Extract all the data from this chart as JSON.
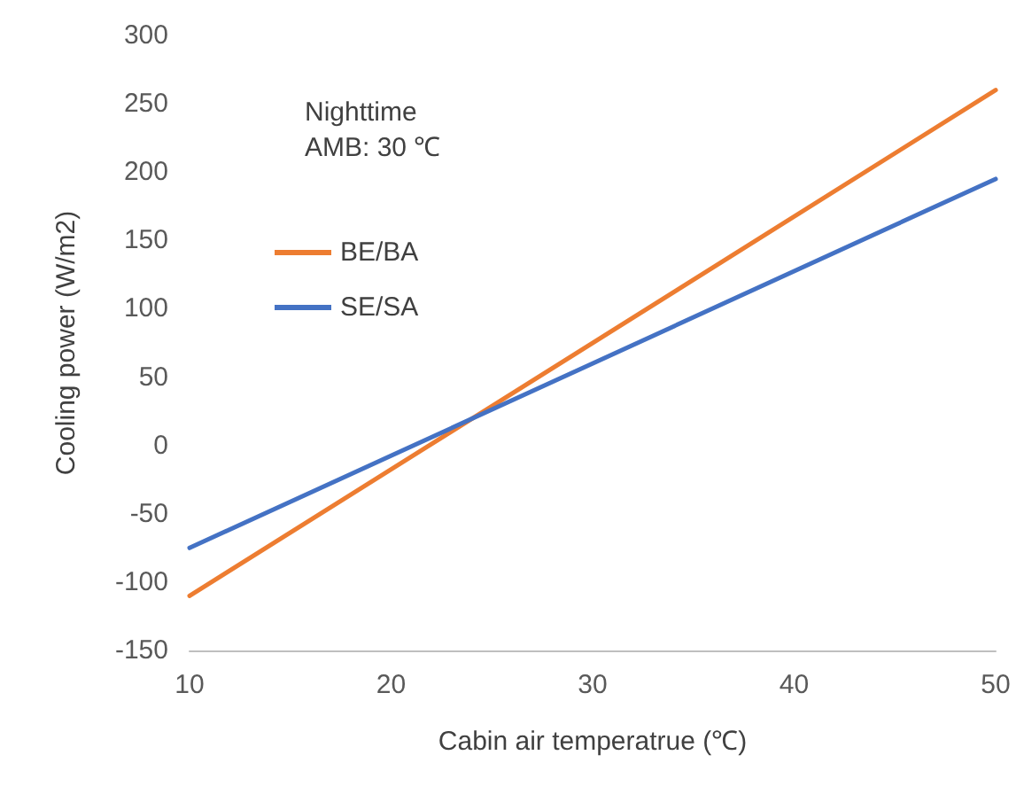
{
  "chart_data": {
    "type": "line",
    "xlabel": "Cabin air temperatrue (℃)",
    "ylabel": "Cooling power (W/m2)",
    "annotations": [
      "Nighttime",
      "AMB: 30 ℃"
    ],
    "x": [
      10,
      50
    ],
    "series": [
      {
        "name": "BE/BA",
        "color": "#ed7d31",
        "values": [
          -110,
          260
        ]
      },
      {
        "name": "SE/SA",
        "color": "#4472c4",
        "values": [
          -75,
          195
        ]
      }
    ],
    "xlim": [
      10,
      50
    ],
    "xticks": [
      10,
      20,
      30,
      40,
      50
    ],
    "ylim": [
      -150,
      300
    ],
    "yticks": [
      -150,
      -100,
      -50,
      0,
      50,
      100,
      150,
      200,
      250,
      300
    ],
    "grid": false,
    "legend": "top left",
    "marker": "none",
    "line_style": "solid"
  }
}
